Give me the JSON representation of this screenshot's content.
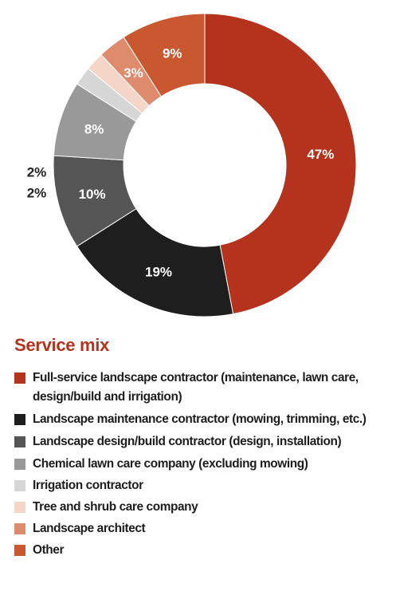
{
  "chart_data": {
    "type": "pie",
    "title": "Service mix",
    "labels": [
      "Full-service landscape contractor (maintenance, lawn care, design/build and irrigation)",
      "Landscape maintenance contractor (mowing, trimming, etc.)",
      "Landscape design/build contractor (design, installation)",
      "Chemical lawn care company (excluding mowing)",
      "Irrigation contractor",
      "Tree and shrub care company",
      "Landscape architect",
      "Other"
    ],
    "values": [
      47,
      19,
      10,
      8,
      2,
      2,
      3,
      9
    ],
    "value_labels": [
      "47%",
      "19%",
      "10%",
      "8%",
      "2%",
      "2%",
      "3%",
      "9%"
    ],
    "colors": [
      "#b5321c",
      "#1e1e1e",
      "#555555",
      "#999999",
      "#d6d6d6",
      "#f5d5c7",
      "#de8a6d",
      "#c9572f"
    ],
    "donut": true,
    "start": "top, clockwise",
    "legend_placement": "bottom"
  }
}
